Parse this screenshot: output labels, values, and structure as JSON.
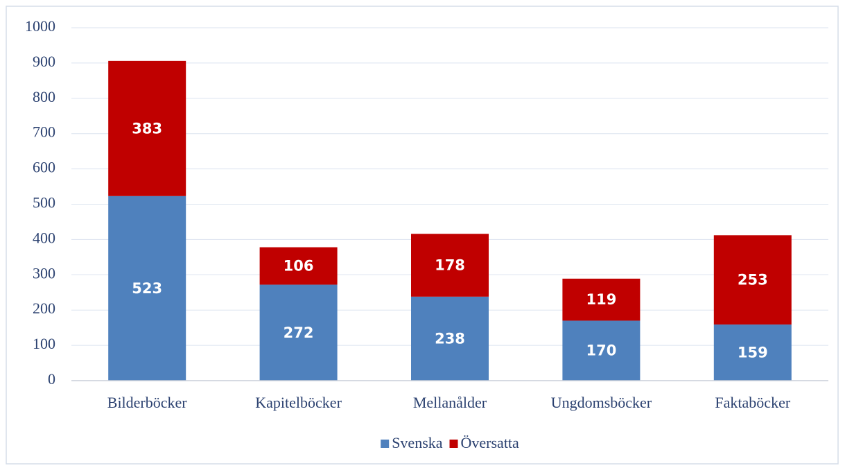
{
  "chart_data": {
    "type": "stacked_bar",
    "categories": [
      "Bilderböcker",
      "Kapitelböcker",
      "Mellanålder",
      "Ungdomsböcker",
      "Faktaböcker"
    ],
    "series": [
      {
        "name": "Svenska",
        "color": "#4f81bd",
        "values": [
          523,
          272,
          238,
          170,
          159
        ]
      },
      {
        "name": "Översatta",
        "color": "#c00000",
        "values": [
          383,
          106,
          178,
          119,
          253
        ]
      }
    ],
    "ylim": [
      0,
      1000
    ],
    "yticks": [
      0,
      100,
      200,
      300,
      400,
      500,
      600,
      700,
      800,
      900,
      1000
    ],
    "grid": true,
    "legend": "bottom"
  }
}
